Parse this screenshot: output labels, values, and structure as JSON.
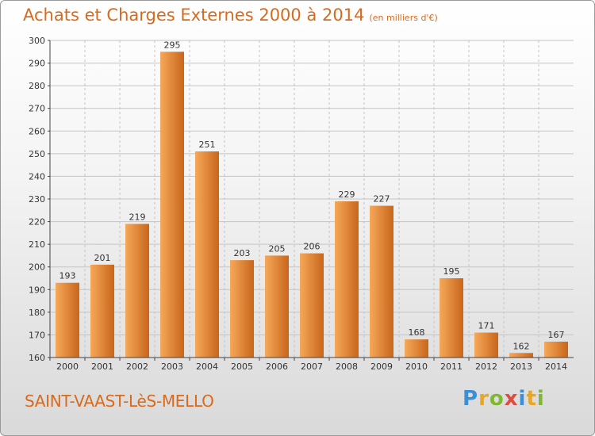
{
  "header": {
    "title": "Achats et Charges Externes 2000 à 2014",
    "unit": "(en milliers d'€)"
  },
  "footer": {
    "place": "SAINT-VAAST-LèS-MELLO"
  },
  "logo": {
    "letters": [
      "P",
      "r",
      "o",
      "x",
      "i",
      "t",
      "i"
    ],
    "colors": [
      "#3a8fd9",
      "#e8a623",
      "#7fb833",
      "#e04a3f",
      "#3a8fd9",
      "#e8a623",
      "#7fb833"
    ]
  },
  "colors": {
    "bar_light": "#f6a85a",
    "bar_dark": "#c8661a",
    "grid": "#c4c4c4",
    "axis": "#444444"
  },
  "chart_data": {
    "type": "bar",
    "title": "Achats et Charges Externes 2000 à 2014",
    "subtitle": "(en milliers d'€)",
    "categories": [
      "2000",
      "2001",
      "2002",
      "2003",
      "2004",
      "2005",
      "2006",
      "2007",
      "2008",
      "2009",
      "2010",
      "2011",
      "2012",
      "2013",
      "2014"
    ],
    "values": [
      193,
      201,
      219,
      295,
      251,
      203,
      205,
      206,
      229,
      227,
      168,
      195,
      171,
      162,
      167
    ],
    "ylim": [
      160,
      300
    ],
    "yticks": [
      160,
      170,
      180,
      190,
      200,
      210,
      220,
      230,
      240,
      250,
      260,
      270,
      280,
      290,
      300
    ],
    "grid": true,
    "legend": "none"
  }
}
